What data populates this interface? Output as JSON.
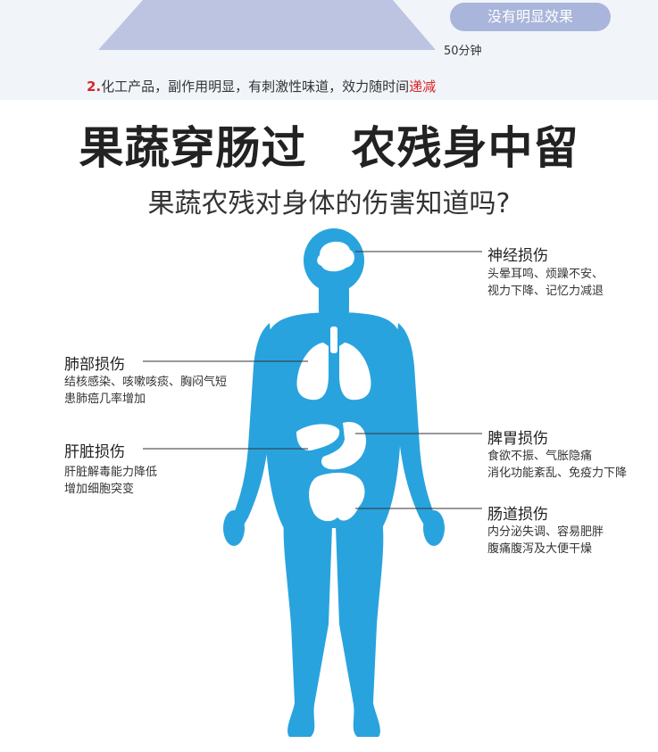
{
  "top": {
    "pill_label": "没有明显效果",
    "time_label": "50分钟",
    "note_number": "2.",
    "note_text": "化工产品，副作用明显，有刺激性味道，效力随时间",
    "note_highlight": "递减"
  },
  "headline": {
    "left": "果蔬穿肠过",
    "right": "农残身中留"
  },
  "subtitle": "果蔬农残对身体的伤害知道吗?",
  "damage": {
    "nerve": {
      "title": "神经损伤",
      "lines": [
        "头晕耳鸣、烦躁不安、",
        "视力下降、记忆力减退"
      ]
    },
    "lung": {
      "title": "肺部损伤",
      "lines": [
        "结核感染、咳嗽咳痰、胸闷气短",
        "患肺癌几率增加"
      ]
    },
    "liver": {
      "title": "肝脏损伤",
      "lines": [
        "肝脏解毒能力降低",
        "增加细胞突变"
      ]
    },
    "spleen": {
      "title": "脾胃损伤",
      "lines": [
        "食欲不振、气胀隐痛",
        "消化功能紊乱、免疫力下降"
      ]
    },
    "intestine": {
      "title": "肠道损伤",
      "lines": [
        "内分泌失调、容易肥胖",
        "腹痛腹泻及大便干燥"
      ]
    }
  },
  "colors": {
    "body": "#29a3de",
    "accent": "#d8252a",
    "pill": "#a9b5da",
    "trapezoid": "#bcc4e2"
  }
}
